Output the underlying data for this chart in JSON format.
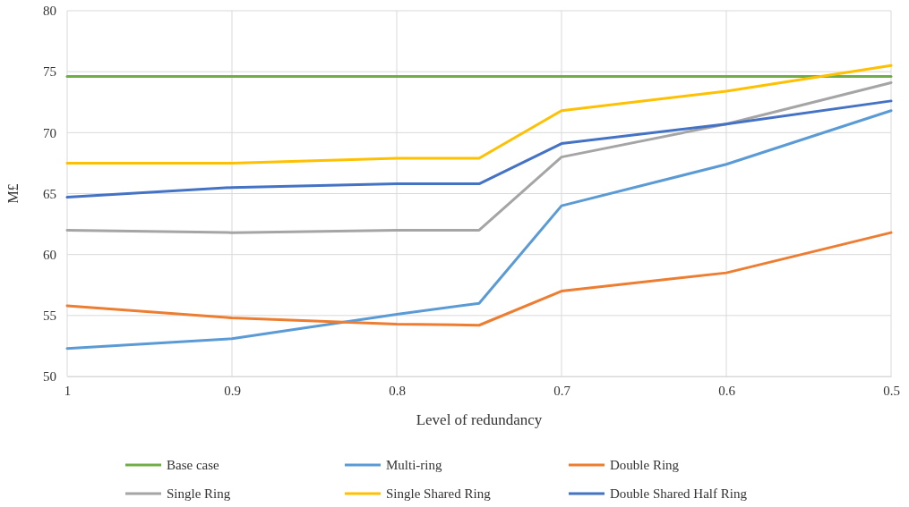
{
  "chart_data": {
    "type": "line",
    "xlabel": "Level of redundancy",
    "ylabel": "M£",
    "x": [
      1,
      0.9,
      0.8,
      0.75,
      0.7,
      0.6,
      0.5
    ],
    "xlim": [
      1,
      0.5
    ],
    "xticks": [
      {
        "value": 1,
        "label": "1"
      },
      {
        "value": 0.9,
        "label": "0.9"
      },
      {
        "value": 0.8,
        "label": "0.8"
      },
      {
        "value": 0.7,
        "label": "0.7"
      },
      {
        "value": 0.6,
        "label": "0.6"
      },
      {
        "value": 0.5,
        "label": "0.5"
      }
    ],
    "ylim": [
      50,
      80
    ],
    "yticks": [
      50,
      55,
      60,
      65,
      70,
      75,
      80
    ],
    "grid": true,
    "legend": "bottom",
    "line_style": "solid",
    "marker": "none",
    "series": [
      {
        "name": "Base case",
        "color": "#70ad47",
        "values": [
          74.6,
          74.6,
          74.6,
          74.6,
          74.6,
          74.6,
          74.6
        ]
      },
      {
        "name": "Multi-ring",
        "color": "#5b9bd5",
        "values": [
          52.3,
          53.1,
          55.1,
          56.0,
          64.0,
          67.4,
          71.8
        ]
      },
      {
        "name": "Double Ring",
        "color": "#ed7d31",
        "values": [
          55.8,
          54.8,
          54.3,
          54.2,
          57.0,
          58.5,
          61.8
        ]
      },
      {
        "name": "Single Ring",
        "color": "#a5a5a5",
        "values": [
          62.0,
          61.8,
          62.0,
          62.0,
          68.0,
          70.7,
          74.1
        ]
      },
      {
        "name": "Single Shared Ring",
        "color": "#ffc000",
        "values": [
          67.5,
          67.5,
          67.9,
          67.9,
          71.8,
          73.4,
          75.5
        ]
      },
      {
        "name": "Double Shared Half Ring",
        "color": "#4472c4",
        "values": [
          64.7,
          65.5,
          65.8,
          65.8,
          69.1,
          70.7,
          72.6
        ]
      }
    ]
  }
}
